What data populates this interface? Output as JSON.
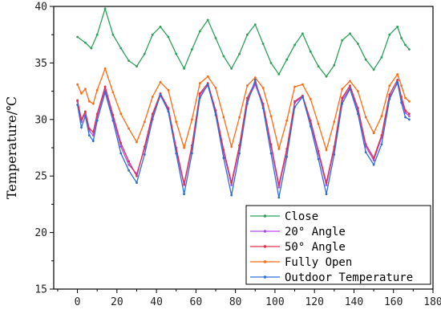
{
  "chart_data": {
    "type": "line",
    "ylabel": "Temperature/℃",
    "xlabel": "",
    "xlim": [
      -12,
      180
    ],
    "ylim": [
      15,
      40
    ],
    "xticks": [
      0,
      20,
      40,
      60,
      80,
      100,
      120,
      140,
      160,
      180
    ],
    "yticks": [
      15,
      20,
      25,
      30,
      35,
      40
    ],
    "legend_position": "bottom-right",
    "series": [
      {
        "name": "Close",
        "color": "#2ca05a",
        "points": [
          [
            0,
            37.3
          ],
          [
            4,
            36.8
          ],
          [
            7,
            36.3
          ],
          [
            10,
            37.5
          ],
          [
            14,
            39.8
          ],
          [
            18,
            37.5
          ],
          [
            22,
            36.3
          ],
          [
            26,
            35.2
          ],
          [
            30,
            34.7
          ],
          [
            34,
            35.8
          ],
          [
            38,
            37.5
          ],
          [
            42,
            38.2
          ],
          [
            46,
            37.3
          ],
          [
            50,
            35.8
          ],
          [
            54,
            34.5
          ],
          [
            58,
            36.2
          ],
          [
            62,
            37.8
          ],
          [
            66,
            38.8
          ],
          [
            70,
            37.2
          ],
          [
            74,
            35.6
          ],
          [
            78,
            34.5
          ],
          [
            82,
            35.8
          ],
          [
            86,
            37.5
          ],
          [
            90,
            38.4
          ],
          [
            94,
            36.7
          ],
          [
            98,
            35.0
          ],
          [
            102,
            34.0
          ],
          [
            106,
            35.3
          ],
          [
            110,
            36.6
          ],
          [
            114,
            37.6
          ],
          [
            118,
            36.0
          ],
          [
            122,
            34.7
          ],
          [
            126,
            33.8
          ],
          [
            130,
            34.8
          ],
          [
            134,
            37.0
          ],
          [
            138,
            37.6
          ],
          [
            142,
            36.7
          ],
          [
            146,
            35.3
          ],
          [
            150,
            34.4
          ],
          [
            154,
            35.5
          ],
          [
            158,
            37.5
          ],
          [
            162,
            38.2
          ],
          [
            164,
            37.2
          ],
          [
            166,
            36.6
          ],
          [
            168,
            36.2
          ]
        ]
      },
      {
        "name": "20° Angle",
        "color": "#b44be8",
        "points": [
          [
            0,
            31.6
          ],
          [
            2,
            29.8
          ],
          [
            4,
            30.6
          ],
          [
            6,
            29.0
          ],
          [
            8,
            28.6
          ],
          [
            10,
            30.3
          ],
          [
            14,
            32.7
          ],
          [
            18,
            30.2
          ],
          [
            22,
            27.6
          ],
          [
            26,
            26.0
          ],
          [
            30,
            25.2
          ],
          [
            34,
            27.4
          ],
          [
            38,
            30.3
          ],
          [
            42,
            32.1
          ],
          [
            46,
            30.9
          ],
          [
            50,
            27.3
          ],
          [
            54,
            24.2
          ],
          [
            58,
            27.5
          ],
          [
            62,
            32.2
          ],
          [
            66,
            33.0
          ],
          [
            70,
            30.6
          ],
          [
            74,
            27.1
          ],
          [
            78,
            24.2
          ],
          [
            82,
            27.5
          ],
          [
            86,
            31.7
          ],
          [
            90,
            33.1
          ],
          [
            94,
            31.2
          ],
          [
            98,
            27.6
          ],
          [
            102,
            24.0
          ],
          [
            106,
            27.2
          ],
          [
            110,
            31.5
          ],
          [
            114,
            32.0
          ],
          [
            118,
            29.7
          ],
          [
            122,
            27.0
          ],
          [
            126,
            24.2
          ],
          [
            130,
            27.4
          ],
          [
            134,
            31.7
          ],
          [
            138,
            32.8
          ],
          [
            142,
            30.8
          ],
          [
            146,
            27.6
          ],
          [
            150,
            26.4
          ],
          [
            154,
            28.4
          ],
          [
            158,
            32.0
          ],
          [
            162,
            33.2
          ],
          [
            164,
            31.8
          ],
          [
            166,
            30.6
          ],
          [
            168,
            30.3
          ]
        ]
      },
      {
        "name": "50° Angle",
        "color": "#e03050",
        "points": [
          [
            0,
            31.7
          ],
          [
            2,
            30.0
          ],
          [
            4,
            30.7
          ],
          [
            6,
            29.2
          ],
          [
            8,
            28.9
          ],
          [
            10,
            30.5
          ],
          [
            14,
            32.9
          ],
          [
            18,
            30.4
          ],
          [
            22,
            27.9
          ],
          [
            26,
            26.3
          ],
          [
            30,
            25.0
          ],
          [
            34,
            27.6
          ],
          [
            38,
            30.5
          ],
          [
            42,
            32.3
          ],
          [
            46,
            31.0
          ],
          [
            50,
            27.5
          ],
          [
            54,
            24.3
          ],
          [
            58,
            27.7
          ],
          [
            62,
            32.3
          ],
          [
            66,
            33.2
          ],
          [
            70,
            30.8
          ],
          [
            74,
            27.3
          ],
          [
            78,
            24.4
          ],
          [
            82,
            27.7
          ],
          [
            86,
            31.9
          ],
          [
            90,
            33.3
          ],
          [
            94,
            31.4
          ],
          [
            98,
            27.8
          ],
          [
            102,
            24.2
          ],
          [
            106,
            27.4
          ],
          [
            110,
            31.6
          ],
          [
            114,
            32.1
          ],
          [
            118,
            29.9
          ],
          [
            122,
            27.2
          ],
          [
            126,
            24.4
          ],
          [
            130,
            27.6
          ],
          [
            134,
            31.9
          ],
          [
            138,
            33.0
          ],
          [
            142,
            31.0
          ],
          [
            146,
            27.8
          ],
          [
            150,
            26.6
          ],
          [
            154,
            28.6
          ],
          [
            158,
            32.2
          ],
          [
            162,
            33.5
          ],
          [
            164,
            32.0
          ],
          [
            166,
            30.8
          ],
          [
            168,
            30.5
          ]
        ]
      },
      {
        "name": "Fully Open",
        "color": "#ff6a10",
        "points": [
          [
            0,
            33.1
          ],
          [
            2,
            32.3
          ],
          [
            4,
            32.7
          ],
          [
            6,
            31.6
          ],
          [
            8,
            31.4
          ],
          [
            10,
            32.6
          ],
          [
            14,
            34.5
          ],
          [
            18,
            32.4
          ],
          [
            22,
            30.5
          ],
          [
            26,
            29.2
          ],
          [
            30,
            28.0
          ],
          [
            34,
            29.8
          ],
          [
            38,
            32.0
          ],
          [
            42,
            33.3
          ],
          [
            46,
            32.6
          ],
          [
            50,
            29.8
          ],
          [
            54,
            27.5
          ],
          [
            58,
            30.0
          ],
          [
            62,
            33.2
          ],
          [
            66,
            33.8
          ],
          [
            70,
            32.8
          ],
          [
            74,
            30.2
          ],
          [
            78,
            27.6
          ],
          [
            82,
            30.2
          ],
          [
            86,
            33.0
          ],
          [
            90,
            33.7
          ],
          [
            94,
            32.8
          ],
          [
            98,
            30.3
          ],
          [
            102,
            27.4
          ],
          [
            106,
            29.9
          ],
          [
            110,
            32.9
          ],
          [
            114,
            33.1
          ],
          [
            118,
            31.8
          ],
          [
            122,
            29.6
          ],
          [
            126,
            27.3
          ],
          [
            130,
            29.8
          ],
          [
            134,
            32.7
          ],
          [
            138,
            33.4
          ],
          [
            142,
            32.5
          ],
          [
            146,
            30.2
          ],
          [
            150,
            28.8
          ],
          [
            154,
            30.3
          ],
          [
            158,
            33.0
          ],
          [
            162,
            34.0
          ],
          [
            164,
            33.0
          ],
          [
            166,
            31.9
          ],
          [
            168,
            31.6
          ]
        ]
      },
      {
        "name": "Outdoor Temperature",
        "color": "#2b6fd8",
        "points": [
          [
            0,
            31.3
          ],
          [
            2,
            29.3
          ],
          [
            4,
            30.3
          ],
          [
            6,
            28.6
          ],
          [
            8,
            28.1
          ],
          [
            10,
            29.9
          ],
          [
            14,
            32.4
          ],
          [
            18,
            29.9
          ],
          [
            22,
            27.0
          ],
          [
            26,
            25.5
          ],
          [
            30,
            24.4
          ],
          [
            34,
            26.9
          ],
          [
            38,
            30.0
          ],
          [
            42,
            32.2
          ],
          [
            46,
            30.7
          ],
          [
            50,
            27.0
          ],
          [
            54,
            23.4
          ],
          [
            58,
            27.0
          ],
          [
            62,
            31.9
          ],
          [
            66,
            33.1
          ],
          [
            70,
            30.4
          ],
          [
            74,
            26.6
          ],
          [
            78,
            23.3
          ],
          [
            82,
            27.0
          ],
          [
            86,
            31.4
          ],
          [
            90,
            33.5
          ],
          [
            94,
            31.0
          ],
          [
            98,
            27.0
          ],
          [
            102,
            23.1
          ],
          [
            106,
            26.7
          ],
          [
            110,
            31.1
          ],
          [
            114,
            32.0
          ],
          [
            118,
            29.4
          ],
          [
            122,
            26.5
          ],
          [
            126,
            23.4
          ],
          [
            130,
            26.9
          ],
          [
            134,
            31.4
          ],
          [
            138,
            32.7
          ],
          [
            142,
            30.5
          ],
          [
            146,
            27.1
          ],
          [
            150,
            26.0
          ],
          [
            154,
            27.8
          ],
          [
            158,
            31.8
          ],
          [
            162,
            33.3
          ],
          [
            164,
            31.5
          ],
          [
            166,
            30.2
          ],
          [
            168,
            30.0
          ]
        ]
      }
    ]
  }
}
